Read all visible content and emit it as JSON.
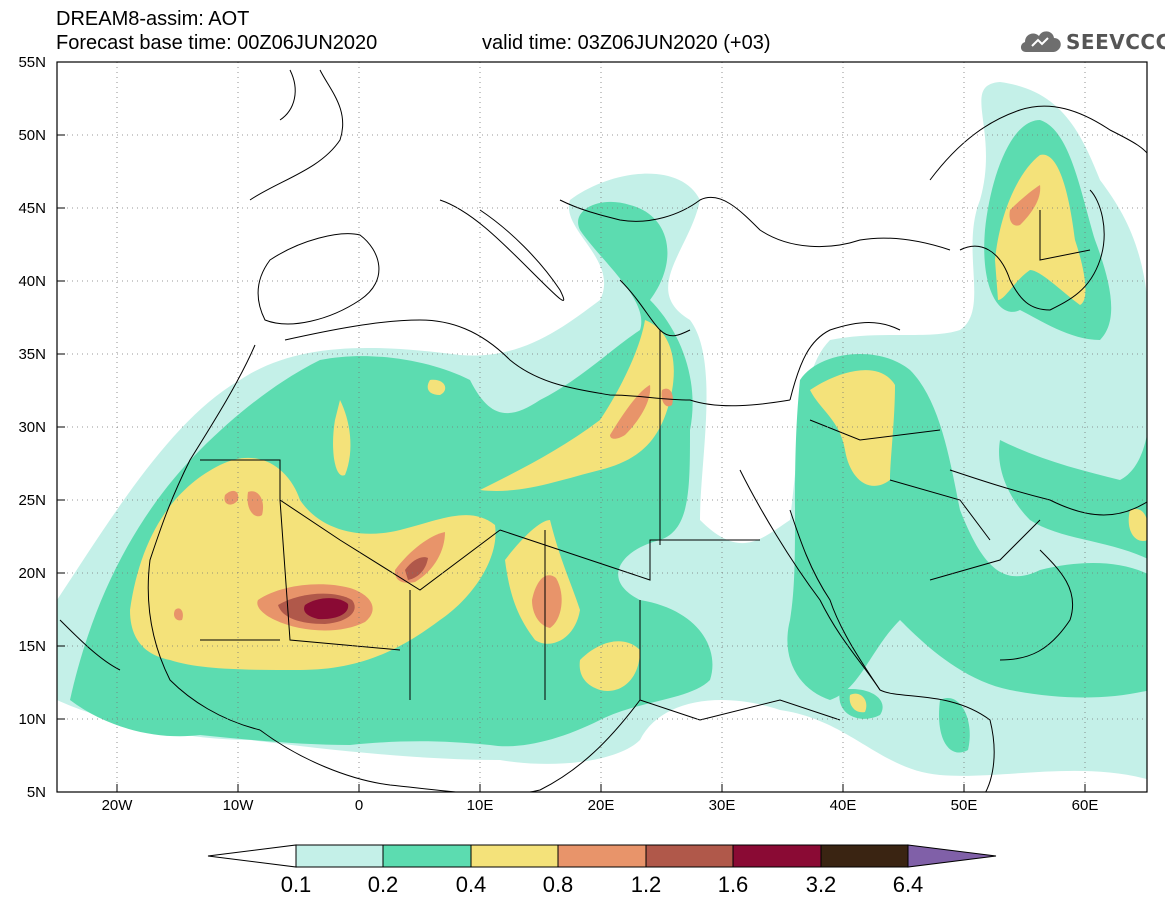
{
  "title": {
    "line1": "DREAM8-assim: AOT",
    "line2": "Forecast base time: 00Z06JUN2020",
    "valid": "valid time: 03Z06JUN2020 (+03)"
  },
  "logo": {
    "text": "SEEVCCC",
    "icon": "cloud-logo-icon"
  },
  "axes": {
    "lat_labels": [
      "55N",
      "50N",
      "45N",
      "40N",
      "35N",
      "30N",
      "25N",
      "20N",
      "15N",
      "10N",
      "5N"
    ],
    "lon_labels": [
      "20W",
      "10W",
      "0",
      "10E",
      "20E",
      "30E",
      "40E",
      "50E",
      "60E"
    ]
  },
  "colorbar": {
    "labels": [
      "0.1",
      "0.2",
      "0.4",
      "0.8",
      "1.2",
      "1.6",
      "3.2",
      "6.4"
    ],
    "colors": [
      "#ffffff",
      "#c4f0e8",
      "#5cdcb0",
      "#f4e27a",
      "#e8946a",
      "#b0584a",
      "#8a0a34",
      "#3a2412",
      "#8060a8"
    ]
  }
}
